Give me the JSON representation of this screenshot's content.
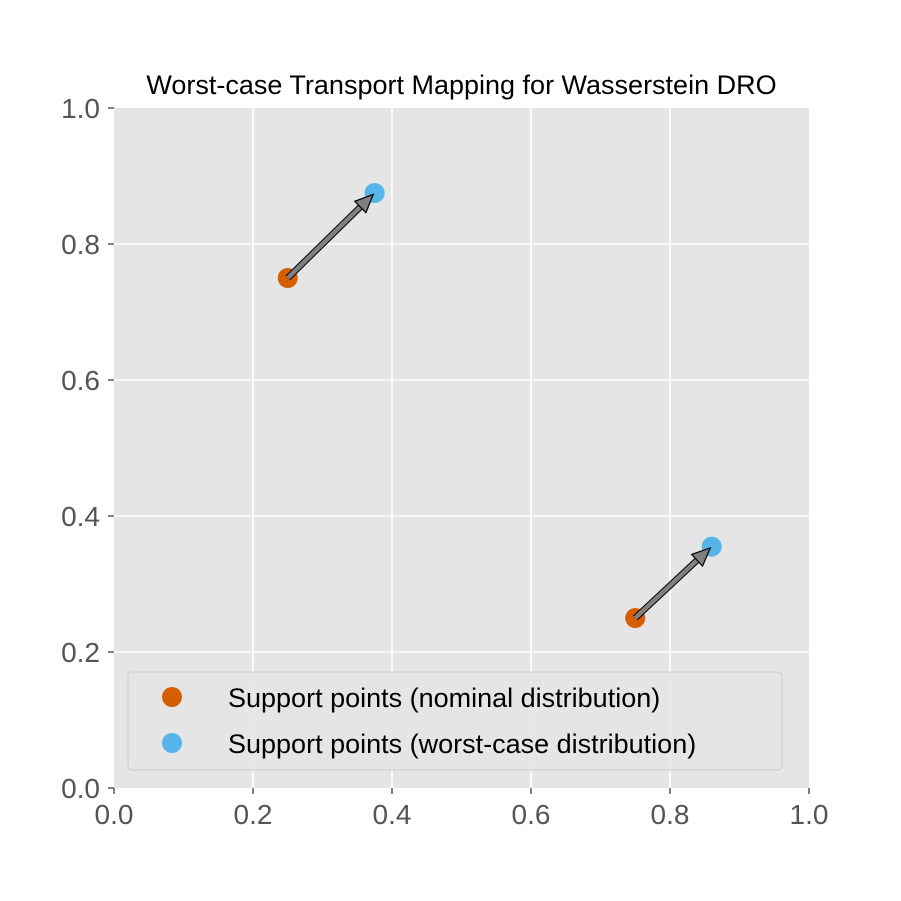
{
  "chart_data": {
    "type": "scatter",
    "title": "Worst-case Transport Mapping for Wasserstein DRO",
    "xlabel": "",
    "ylabel": "",
    "xlim": [
      0.0,
      1.0
    ],
    "ylim": [
      0.0,
      1.0
    ],
    "xticks": [
      "0.0",
      "0.2",
      "0.4",
      "0.6",
      "0.8",
      "1.0"
    ],
    "yticks": [
      "0.0",
      "0.2",
      "0.4",
      "0.6",
      "0.8",
      "1.0"
    ],
    "grid": true,
    "legend_position": "lower-left",
    "background_color": "#e5e5e5",
    "grid_color": "#ffffff",
    "arrow_color": "#808080",
    "series": [
      {
        "name": "Support points (nominal distribution)",
        "color": "#d55e00",
        "points": [
          {
            "x": 0.25,
            "y": 0.75
          },
          {
            "x": 0.75,
            "y": 0.25
          }
        ]
      },
      {
        "name": "Support points (worst-case distribution)",
        "color": "#56b4e9",
        "points": [
          {
            "x": 0.375,
            "y": 0.875
          },
          {
            "x": 0.86,
            "y": 0.355
          }
        ]
      }
    ],
    "arrows": [
      {
        "from": {
          "x": 0.25,
          "y": 0.75
        },
        "to": {
          "x": 0.375,
          "y": 0.875
        }
      },
      {
        "from": {
          "x": 0.75,
          "y": 0.25
        },
        "to": {
          "x": 0.86,
          "y": 0.355
        }
      }
    ]
  }
}
